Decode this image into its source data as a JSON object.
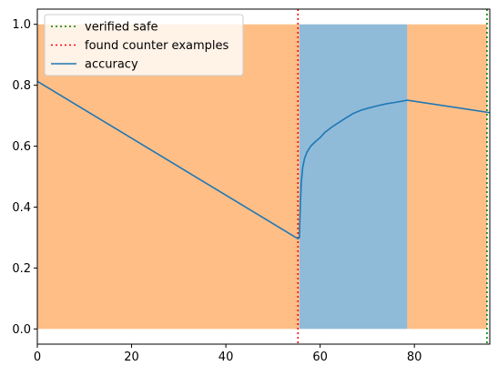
{
  "chart_data": {
    "type": "line",
    "xlim": [
      0,
      96
    ],
    "ylim": [
      -0.05,
      1.05
    ],
    "xticks": [
      0,
      20,
      40,
      60,
      80
    ],
    "yticks": [
      0.0,
      0.2,
      0.4,
      0.6,
      0.8,
      1.0
    ],
    "xtick_labels": [
      "0",
      "20",
      "40",
      "60",
      "80"
    ],
    "ytick_labels": [
      "0.0",
      "0.2",
      "0.4",
      "0.6",
      "0.8",
      "1.0"
    ],
    "grid": false,
    "legend_position": "top-left",
    "regions": [
      {
        "x_start": 0,
        "x_end": 55.6,
        "y_start": 0,
        "y_end": 1,
        "color": "#ffbe86"
      },
      {
        "x_start": 55.6,
        "x_end": 78.5,
        "y_start": 0,
        "y_end": 1,
        "color": "#8fbbd9"
      },
      {
        "x_start": 78.5,
        "x_end": 95.4,
        "y_start": 0,
        "y_end": 1,
        "color": "#ffbe86"
      }
    ],
    "vlines": [
      {
        "name": "verified safe",
        "x": 95.4,
        "color": "#008000",
        "style": "dotted"
      },
      {
        "name": "found counter examples",
        "x": 55.3,
        "color": "#ff0000",
        "style": "dotted"
      }
    ],
    "series": [
      {
        "name": "accuracy",
        "color": "#1f77b4",
        "x": [
          0,
          55.3,
          55.6,
          55.8,
          56.0,
          56.3,
          56.7,
          57.2,
          58.0,
          59.0,
          60.0,
          61.0,
          62.5,
          64.0,
          65.5,
          67.0,
          68.5,
          70.0,
          72.0,
          74.0,
          76.0,
          78.5,
          96.0
        ],
        "values": [
          0.813,
          0.296,
          0.3,
          0.41,
          0.48,
          0.53,
          0.56,
          0.58,
          0.6,
          0.615,
          0.628,
          0.645,
          0.663,
          0.678,
          0.693,
          0.707,
          0.717,
          0.724,
          0.732,
          0.739,
          0.744,
          0.751,
          0.71
        ]
      }
    ]
  }
}
